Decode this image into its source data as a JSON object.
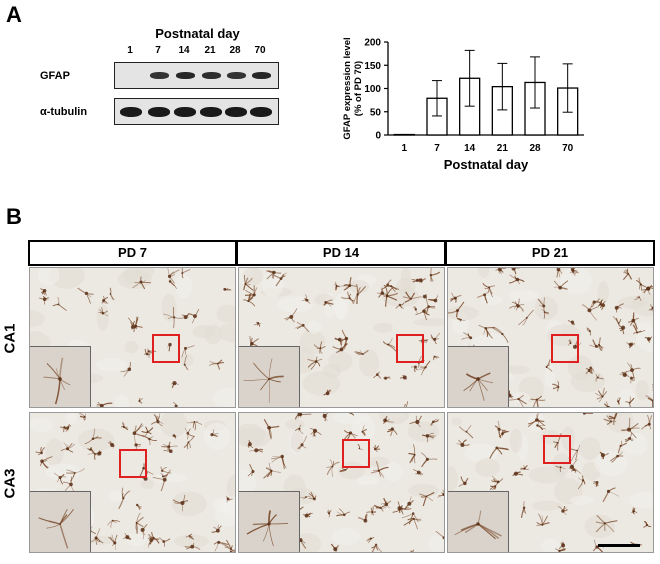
{
  "panel_a": {
    "letter": "A"
  },
  "panel_b": {
    "letter": "B"
  },
  "blot": {
    "header": "Postnatal day",
    "lanes": [
      "1",
      "7",
      "14",
      "21",
      "28",
      "70"
    ],
    "rows": [
      {
        "label": "GFAP",
        "intensity": [
          0,
          0.8,
          0.9,
          0.85,
          0.8,
          0.9
        ]
      },
      {
        "label": "α-tubulin",
        "intensity": [
          1,
          1,
          1,
          1,
          1,
          1
        ]
      }
    ]
  },
  "chart_data": {
    "type": "bar",
    "categories": [
      "1",
      "7",
      "14",
      "21",
      "28",
      "70"
    ],
    "values": [
      1,
      79,
      122,
      104,
      113,
      101
    ],
    "errors": [
      0,
      38,
      60,
      50,
      55,
      52
    ],
    "xlabel": "Postnatal day",
    "ylabel": "GFAP expression level\n(% of PD 70)",
    "ylim": [
      0,
      200
    ],
    "yticks": [
      0,
      50,
      100,
      150,
      200
    ],
    "grid": false
  },
  "micrographs": {
    "columns": [
      "PD 7",
      "PD 14",
      "PD 21"
    ],
    "rows": [
      "CA1",
      "CA3"
    ]
  },
  "colors": {
    "stain": "#7a4a2a",
    "roi": "#e02020",
    "tissue": "#ece8e2"
  }
}
